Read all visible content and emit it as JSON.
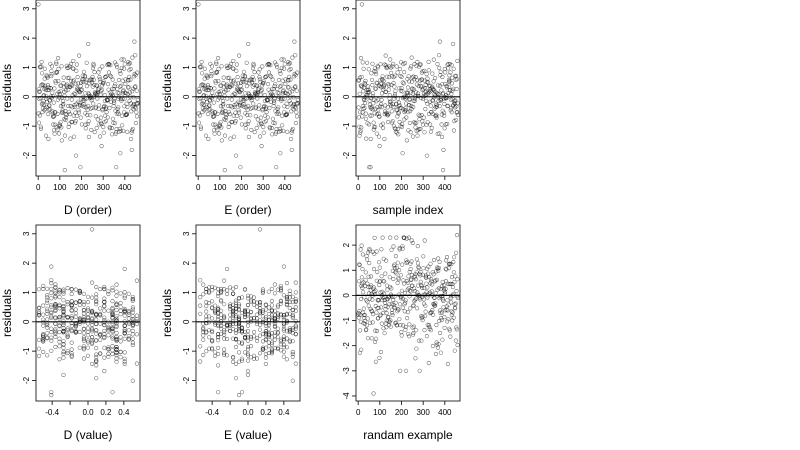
{
  "chart_data": [
    {
      "type": "scatter",
      "xlabel": "D (order)",
      "ylabel": "residuals",
      "xlim": [
        -10,
        470
      ],
      "ylim": [
        -2.7,
        3.3
      ],
      "xticks": [
        0,
        100,
        200,
        300,
        400
      ],
      "yticks": [
        -2,
        -1,
        0,
        1,
        2,
        3
      ],
      "reference_line_y": 0,
      "grid": false,
      "x_kind": "index",
      "x_range": [
        1,
        460
      ],
      "n_points": 460,
      "marker": "open-circle",
      "y_extremes": [
        3.15,
        -2.5
      ]
    },
    {
      "type": "scatter",
      "xlabel": "E (order)",
      "ylabel": "residuals",
      "xlim": [
        -10,
        470
      ],
      "ylim": [
        -2.7,
        3.3
      ],
      "xticks": [
        0,
        100,
        200,
        300,
        400
      ],
      "yticks": [
        -2,
        -1,
        0,
        1,
        2,
        3
      ],
      "reference_line_y": 0,
      "grid": false,
      "x_kind": "index",
      "x_range": [
        1,
        460
      ],
      "n_points": 460,
      "marker": "open-circle",
      "y_extremes": [
        3.15,
        -2.5
      ]
    },
    {
      "type": "scatter",
      "xlabel": "sample index",
      "ylabel": "residuals",
      "xlim": [
        -10,
        470
      ],
      "ylim": [
        -2.7,
        3.3
      ],
      "xticks": [
        0,
        100,
        200,
        300,
        400
      ],
      "yticks": [
        -2,
        -1,
        0,
        1,
        2,
        3
      ],
      "reference_line_y": 0,
      "grid": false,
      "x_kind": "index",
      "x_range": [
        1,
        460
      ],
      "n_points": 460,
      "marker": "open-circle",
      "y_extremes": [
        3.15,
        -2.5
      ]
    },
    {
      "type": "scatter",
      "xlabel": "D (value)",
      "ylabel": "residuals",
      "xlim": [
        -0.58,
        0.58
      ],
      "ylim": [
        -2.7,
        3.3
      ],
      "xticks": [
        -0.4,
        -0.2,
        0.0,
        0.2,
        0.4
      ],
      "xtick_labels": [
        "-0.4",
        "",
        "0.0",
        "0.2",
        "0.4"
      ],
      "yticks": [
        -2,
        -1,
        0,
        1,
        2,
        3
      ],
      "reference_line_y": 0,
      "grid": false,
      "x_kind": "value",
      "x_range": [
        -0.55,
        0.55
      ],
      "n_points": 460,
      "marker": "open-circle",
      "y_extremes": [
        3.15,
        -2.5
      ]
    },
    {
      "type": "scatter",
      "xlabel": "E (value)",
      "ylabel": "residuals",
      "xlim": [
        -0.58,
        0.58
      ],
      "ylim": [
        -2.7,
        3.3
      ],
      "xticks": [
        -0.4,
        -0.2,
        0.0,
        0.2,
        0.4
      ],
      "xtick_labels": [
        "-0.4",
        "",
        "0.0",
        "0.2",
        "0.4"
      ],
      "yticks": [
        -2,
        -1,
        0,
        1,
        2,
        3
      ],
      "reference_line_y": 0,
      "grid": false,
      "x_kind": "value",
      "x_range": [
        -0.55,
        0.55
      ],
      "n_points": 460,
      "marker": "open-circle",
      "y_extremes": [
        3.15,
        -2.5
      ]
    },
    {
      "type": "scatter",
      "xlabel": "randam example",
      "ylabel": "residuals",
      "xlim": [
        -10,
        470
      ],
      "ylim": [
        -4.2,
        2.8
      ],
      "xticks": [
        0,
        100,
        200,
        300,
        400
      ],
      "yticks": [
        -4,
        -3,
        -2,
        -1,
        0,
        1,
        2
      ],
      "reference_line_y": 0,
      "grid": false,
      "x_kind": "index",
      "x_range": [
        1,
        460
      ],
      "n_points": 460,
      "marker": "open-circle",
      "y_extremes": [
        2.4,
        -3.9
      ]
    }
  ]
}
